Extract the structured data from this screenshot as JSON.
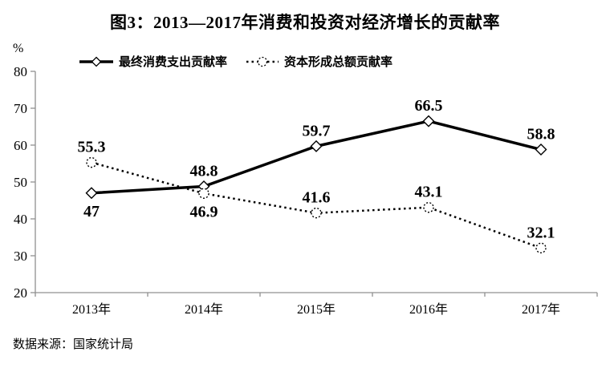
{
  "page": {
    "source": "数据来源：国家统计局"
  },
  "chart_data": {
    "type": "line",
    "title": "图3：2013—2017年消费和投资对经济增长的贡献率",
    "ylabel": "%",
    "categories": [
      "2013年",
      "2014年",
      "2015年",
      "2016年",
      "2017年"
    ],
    "series": [
      {
        "name": "最终消费支出贡献率",
        "marker": "diamond",
        "line_style": "solid",
        "values": [
          47,
          48.8,
          59.7,
          66.5,
          58.8
        ],
        "label_positions": [
          "below",
          "above",
          "above",
          "above",
          "above"
        ]
      },
      {
        "name": "资本形成总额贡献率",
        "marker": "circle",
        "line_style": "dotted",
        "values": [
          55.3,
          46.9,
          41.6,
          43.1,
          32.1
        ],
        "label_positions": [
          "above",
          "below",
          "above",
          "above",
          "above"
        ]
      }
    ],
    "ylim": [
      20,
      80
    ],
    "yticks": [
      20,
      30,
      40,
      50,
      60,
      70,
      80
    ],
    "grid": false,
    "legend_position": "top",
    "colors": {
      "series": "#000000",
      "axis": "#909090",
      "text": "#000000",
      "background": "#ffffff"
    }
  }
}
